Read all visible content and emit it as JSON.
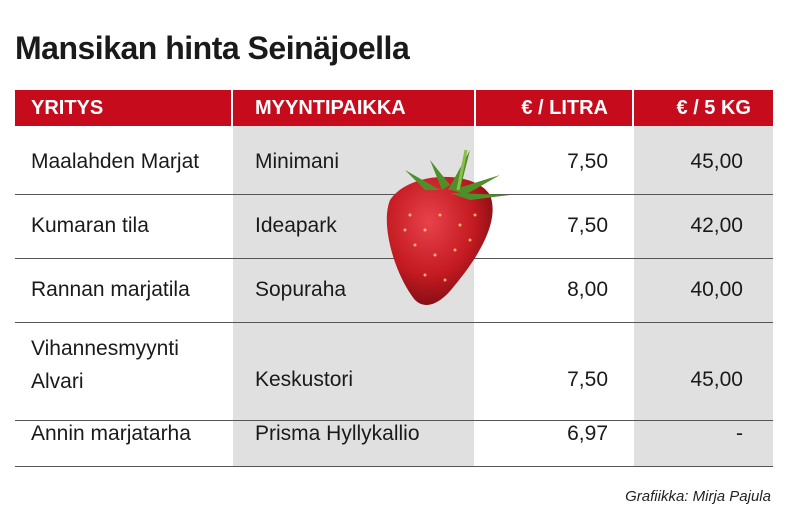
{
  "title": "Mansikan hinta Seinäjoella",
  "colors": {
    "header": "#c60c1c",
    "shaded_column": "#e0e0e0"
  },
  "chart_data": {
    "type": "table",
    "title": "Mansikan hinta Seinäjoella",
    "columns": [
      "YRITYS",
      "MYYNTIPAIKKA",
      "€ / LITRA",
      "€ / 5 KG"
    ],
    "rows": [
      [
        "Maalahden Marjat",
        "Minimani",
        "7,50",
        "45,00"
      ],
      [
        "Kumaran tila",
        "Ideapark",
        "7,50",
        "42,00"
      ],
      [
        "Rannan marjatila",
        "Sopuraha",
        "8,00",
        "40,00"
      ],
      [
        "Vihannesmyynti Alvari",
        "Keskustori",
        "7,50",
        "45,00"
      ],
      [
        "Annin marjatarha",
        "Prisma Hyllykallio",
        "6,97",
        "-"
      ]
    ]
  },
  "decoration": "strawberry-image",
  "footer": "Grafiikka: Mirja Pajula"
}
